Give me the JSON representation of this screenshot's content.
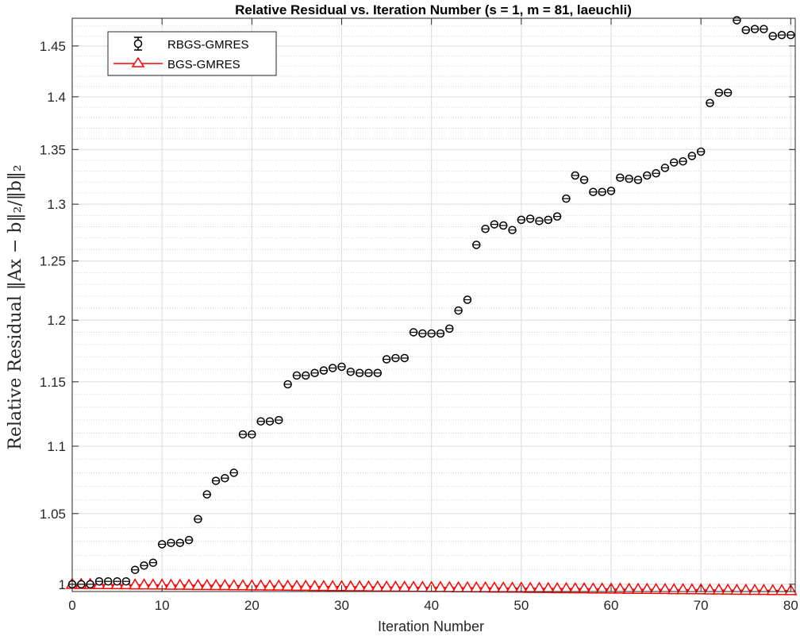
{
  "chart_data": {
    "type": "scatter",
    "title": "Relative Residual vs. Iteration Number (s = 1, m = 81, laeuchli)",
    "xlabel": "Iteration Number",
    "ylabel": "Relative Residual ‖Ax − b‖₂/‖b‖₂",
    "xlim": [
      0,
      80.5
    ],
    "ylim": [
      0.995,
      1.478
    ],
    "yscale": "log",
    "grid": true,
    "minor_grid": true,
    "legend_position": "top-left",
    "x_ticks": [
      0,
      10,
      20,
      30,
      40,
      50,
      60,
      70,
      80
    ],
    "x_tick_labels": [
      "0",
      "10",
      "20",
      "30",
      "40",
      "50",
      "60",
      "70",
      "80"
    ],
    "y_ticks": [
      1,
      1.05,
      1.1,
      1.15,
      1.2,
      1.25,
      1.3,
      1.35,
      1.4,
      1.45
    ],
    "y_tick_labels": [
      "1",
      "1.05",
      "1.1",
      "1.15",
      "1.2",
      "1.25",
      "1.3",
      "1.35",
      "1.4",
      "1.45"
    ],
    "x": [
      0,
      1,
      2,
      3,
      4,
      5,
      6,
      7,
      8,
      9,
      10,
      11,
      12,
      13,
      14,
      15,
      16,
      17,
      18,
      19,
      20,
      21,
      22,
      23,
      24,
      25,
      26,
      27,
      28,
      29,
      30,
      31,
      32,
      33,
      34,
      35,
      36,
      37,
      38,
      39,
      40,
      41,
      42,
      43,
      44,
      45,
      46,
      47,
      48,
      49,
      50,
      51,
      52,
      53,
      54,
      55,
      56,
      57,
      58,
      59,
      60,
      61,
      62,
      63,
      64,
      65,
      66,
      67,
      68,
      69,
      70,
      71,
      72,
      73,
      74,
      75,
      76,
      77,
      78,
      79,
      80
    ],
    "series": [
      {
        "name": "RBGS-GMRES",
        "color": "#000000",
        "marker": "circle-with-errorbar",
        "values": [
          1.0,
          1.0,
          1.0,
          1.002,
          1.002,
          1.002,
          1.002,
          1.01,
          1.013,
          1.015,
          1.028,
          1.029,
          1.029,
          1.031,
          1.046,
          1.064,
          1.074,
          1.076,
          1.08,
          1.109,
          1.109,
          1.119,
          1.119,
          1.12,
          1.148,
          1.155,
          1.155,
          1.157,
          1.159,
          1.161,
          1.162,
          1.158,
          1.157,
          1.157,
          1.157,
          1.168,
          1.169,
          1.169,
          1.19,
          1.189,
          1.189,
          1.189,
          1.193,
          1.208,
          1.217,
          1.264,
          1.278,
          1.282,
          1.281,
          1.277,
          1.286,
          1.287,
          1.285,
          1.286,
          1.289,
          1.305,
          1.326,
          1.322,
          1.311,
          1.311,
          1.312,
          1.324,
          1.323,
          1.322,
          1.326,
          1.328,
          1.333,
          1.338,
          1.339,
          1.344,
          1.348,
          1.394,
          1.404,
          1.404,
          1.476,
          1.466,
          1.467,
          1.467,
          1.46,
          1.461,
          1.461
        ]
      },
      {
        "name": "BGS-GMRES",
        "color": "#ff0000",
        "marker": "triangle-line",
        "values": [
          1.0,
          0.9999,
          0.9999,
          0.9998,
          0.9998,
          0.9997,
          0.9997,
          0.9996,
          0.9996,
          0.9995,
          0.9995,
          0.9994,
          0.9994,
          0.9993,
          0.9992,
          0.9992,
          0.9991,
          0.9991,
          0.999,
          0.999,
          0.9989,
          0.9989,
          0.9988,
          0.9988,
          0.9987,
          0.9986,
          0.9986,
          0.9985,
          0.9985,
          0.9984,
          0.9984,
          0.9983,
          0.9983,
          0.9982,
          0.9981,
          0.9981,
          0.998,
          0.998,
          0.9979,
          0.9979,
          0.9978,
          0.9978,
          0.9977,
          0.9976,
          0.9976,
          0.9975,
          0.9975,
          0.9974,
          0.9974,
          0.9973,
          0.9973,
          0.9972,
          0.9972,
          0.9971,
          0.997,
          0.997,
          0.9969,
          0.9969,
          0.9968,
          0.9968,
          0.9967,
          0.9967,
          0.9966,
          0.9965,
          0.9965,
          0.9964,
          0.9964,
          0.9963,
          0.9963,
          0.9962,
          0.9962,
          0.9961,
          0.9961,
          0.996,
          0.9959,
          0.9959,
          0.9958,
          0.9958,
          0.9957,
          0.9957,
          0.9956
        ]
      }
    ]
  }
}
